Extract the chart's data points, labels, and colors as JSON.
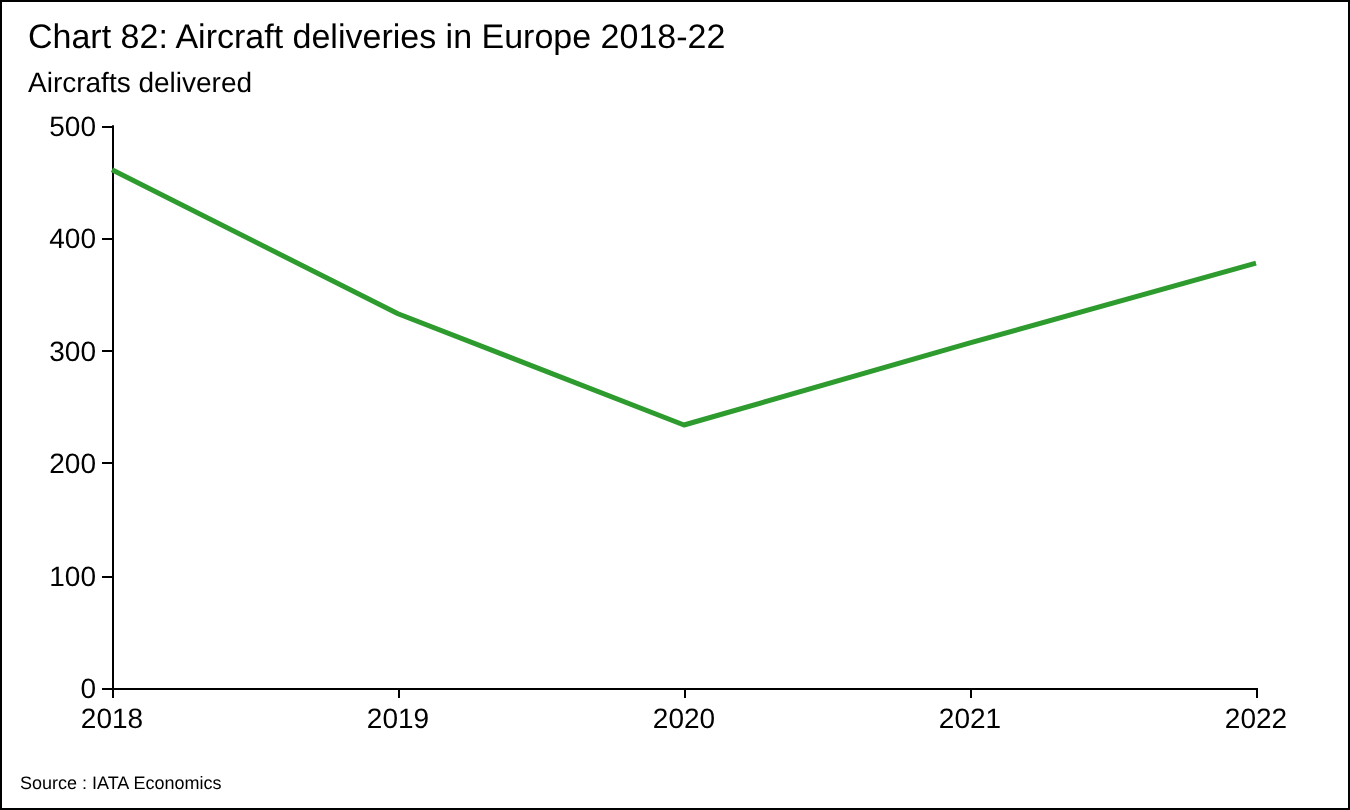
{
  "chart_data": {
    "type": "line",
    "title": "Chart 82: Aircraft deliveries in Europe 2018-22",
    "ylabel": "Aircrafts delivered",
    "categories": [
      "2018",
      "2019",
      "2020",
      "2021",
      "2022"
    ],
    "series": [
      {
        "color": "#2e9b2e",
        "values": [
          461,
          333,
          234,
          307,
          378
        ]
      }
    ],
    "ylim": [
      0,
      500
    ],
    "yticks": [
      0,
      100,
      200,
      300,
      400,
      500
    ],
    "grid": false,
    "marker": "none",
    "annotations": [
      "Source : IATA Economics"
    ]
  }
}
